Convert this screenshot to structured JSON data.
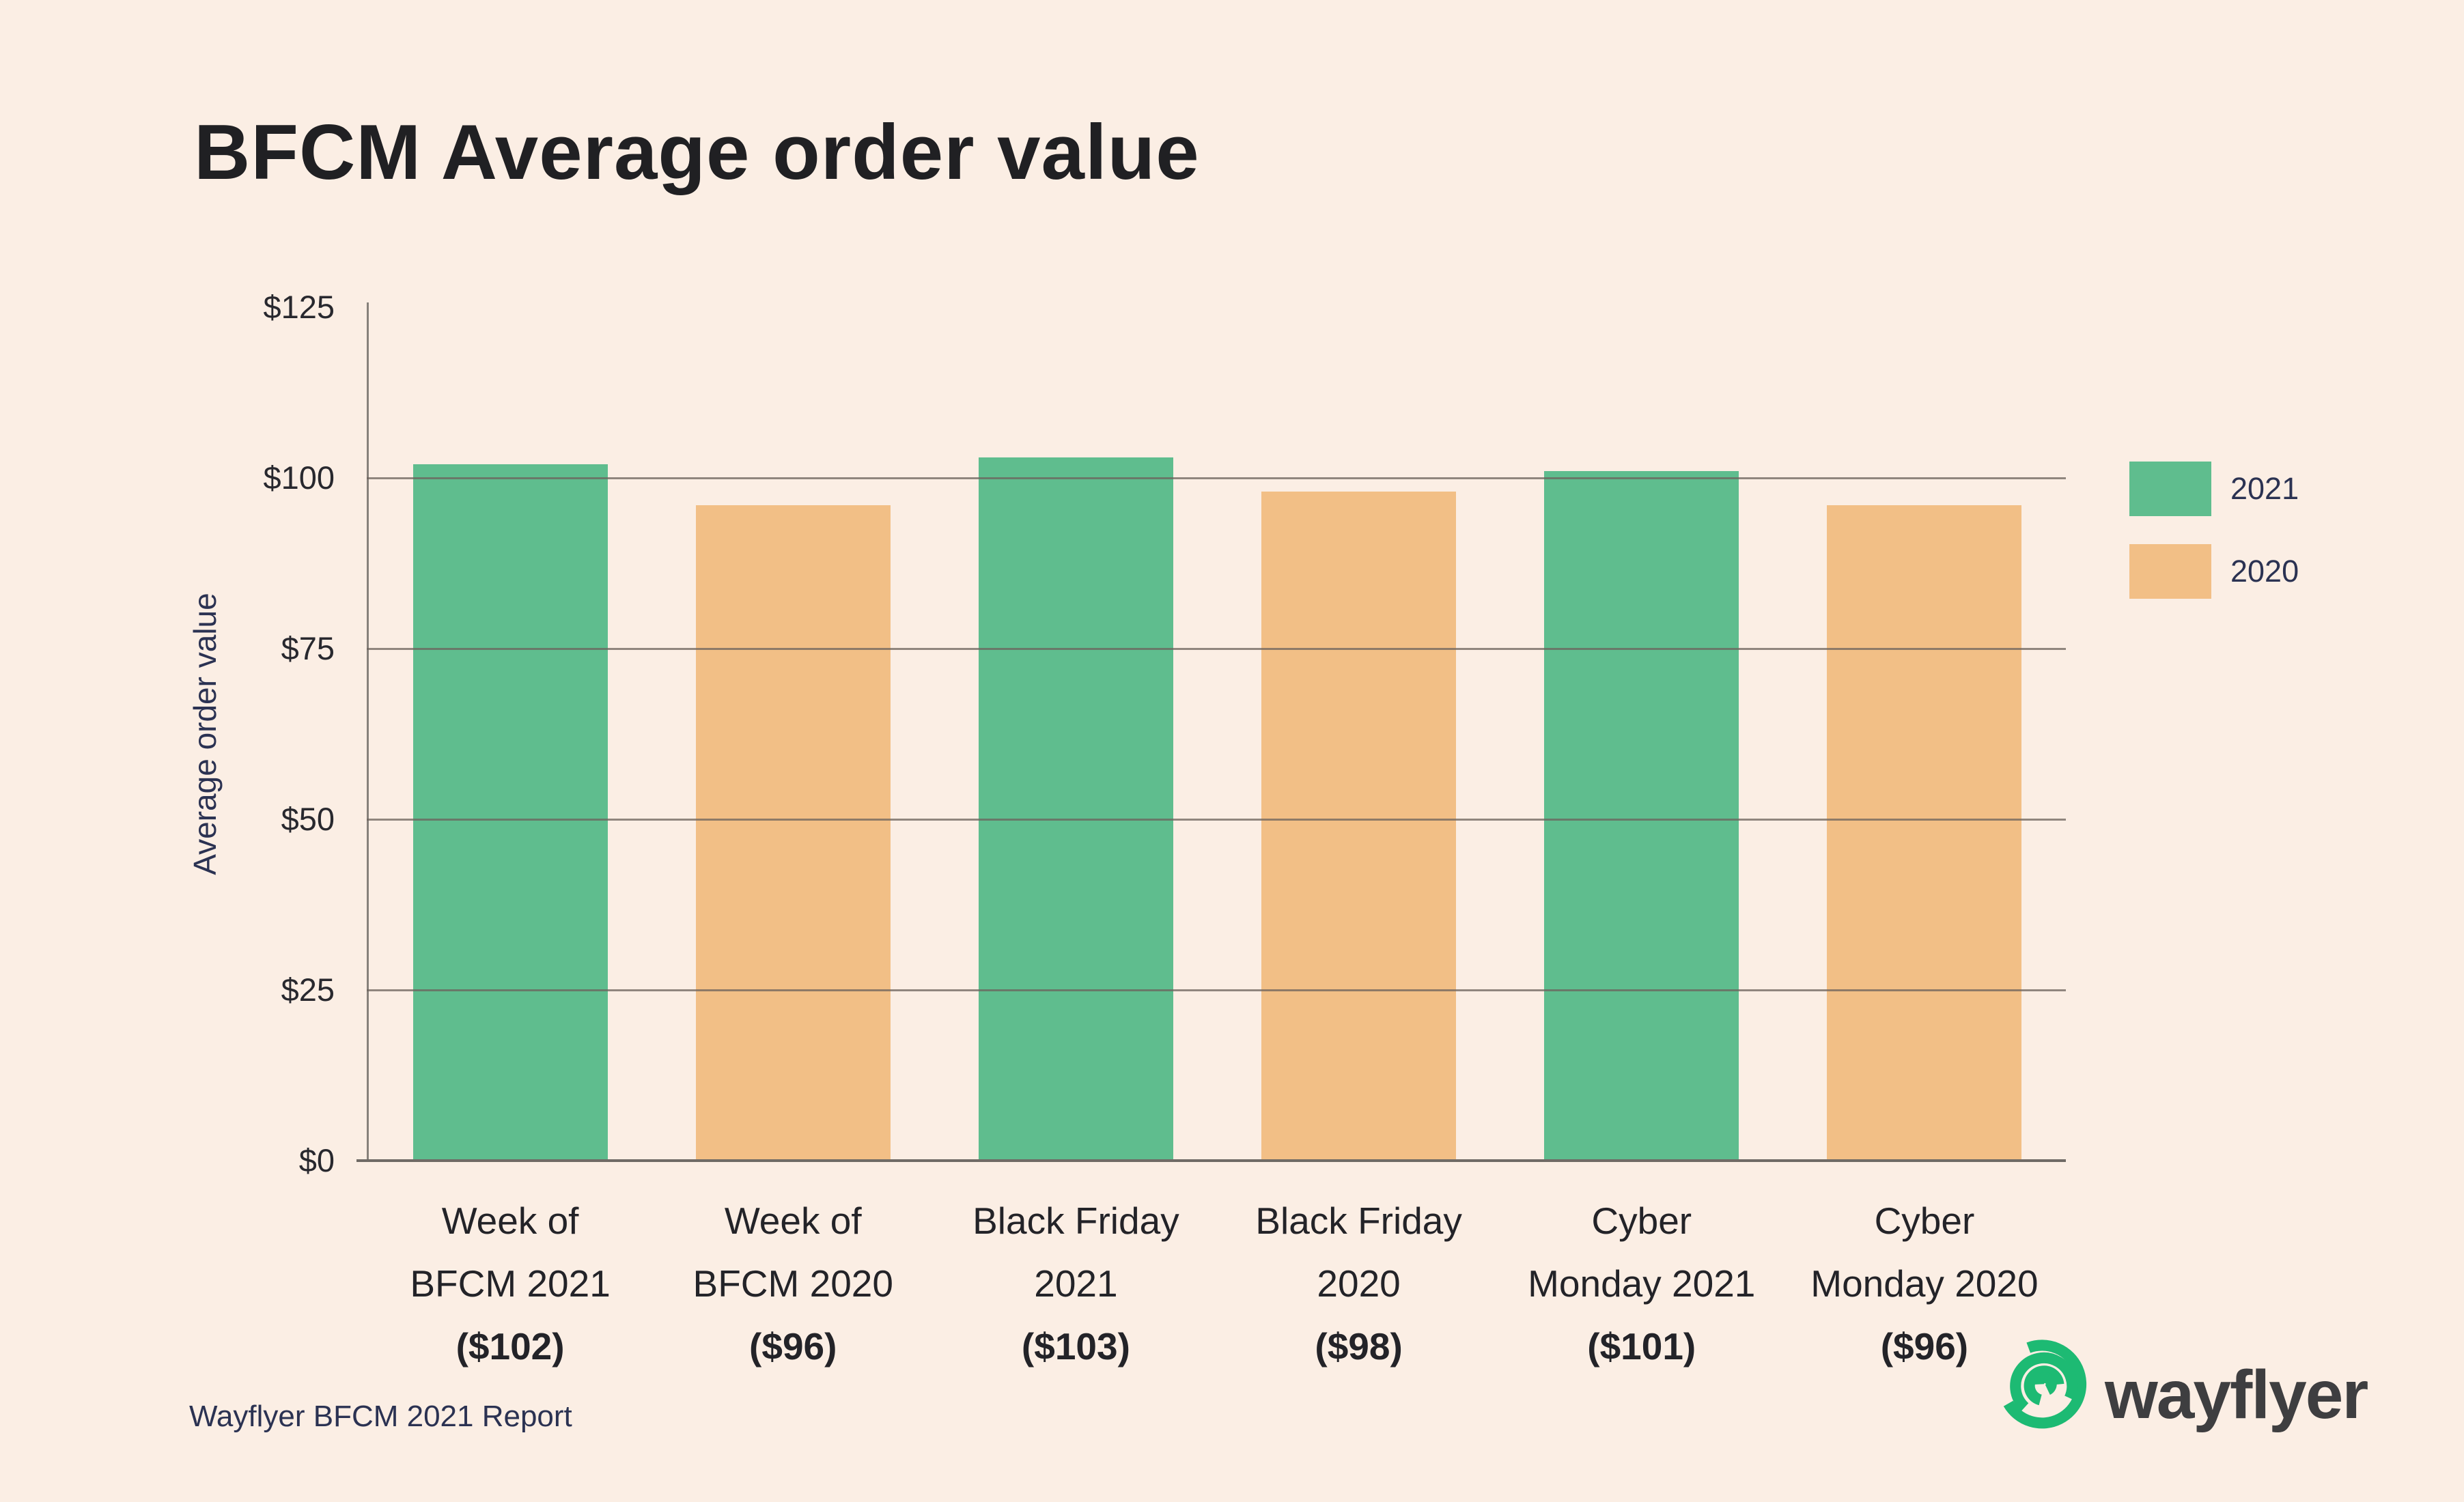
{
  "title": "BFCM Average order value",
  "footer": "Wayflyer BFCM 2021 Report",
  "brand": {
    "wordmark": "wayflyer",
    "logo_icon": "wayflyer-swirl-icon",
    "logo_green": "#1DBA73",
    "wordmark_color": "#3E3E40"
  },
  "background_color": "#FBEEE4",
  "y_axis": {
    "label": "Average order value"
  },
  "legend": {
    "items": [
      {
        "label": "2021",
        "color": "#5FBD8E"
      },
      {
        "label": "2020",
        "color": "#F2BF86"
      }
    ]
  },
  "chart_data": {
    "type": "bar",
    "title": "BFCM Average order value",
    "xlabel": "",
    "ylabel": "Average order value",
    "ylim": [
      0,
      125
    ],
    "yticks": [
      125,
      100,
      75,
      50,
      25,
      0
    ],
    "ytick_labels": [
      "$125",
      "$100",
      "$75",
      "$50",
      "$25",
      "$0"
    ],
    "gridlines_at": [
      100,
      75,
      50,
      25
    ],
    "grid": true,
    "legend_position": "right",
    "categories": [
      {
        "lines": [
          "Week of",
          "BFCM 2021"
        ],
        "value_label": "($102)",
        "value": 102,
        "series": "2021"
      },
      {
        "lines": [
          "Week of",
          "BFCM 2020"
        ],
        "value_label": "($96)",
        "value": 96,
        "series": "2020"
      },
      {
        "lines": [
          "Black Friday",
          "2021"
        ],
        "value_label": "($103)",
        "value": 103,
        "series": "2021"
      },
      {
        "lines": [
          "Black Friday",
          "2020"
        ],
        "value_label": "($98)",
        "value": 98,
        "series": "2020"
      },
      {
        "lines": [
          "Cyber",
          "Monday 2021"
        ],
        "value_label": "($101)",
        "value": 101,
        "series": "2021"
      },
      {
        "lines": [
          "Cyber",
          "Monday 2020"
        ],
        "value_label": "($96)",
        "value": 96,
        "series": "2020"
      }
    ],
    "series": [
      {
        "name": "2021",
        "values": [
          102,
          103,
          101
        ],
        "color": "#5FBD8E"
      },
      {
        "name": "2020",
        "values": [
          96,
          98,
          96
        ],
        "color": "#F2BF86"
      }
    ],
    "series_colors": {
      "2021": "#5FBD8E",
      "2020": "#F2BF86"
    }
  }
}
